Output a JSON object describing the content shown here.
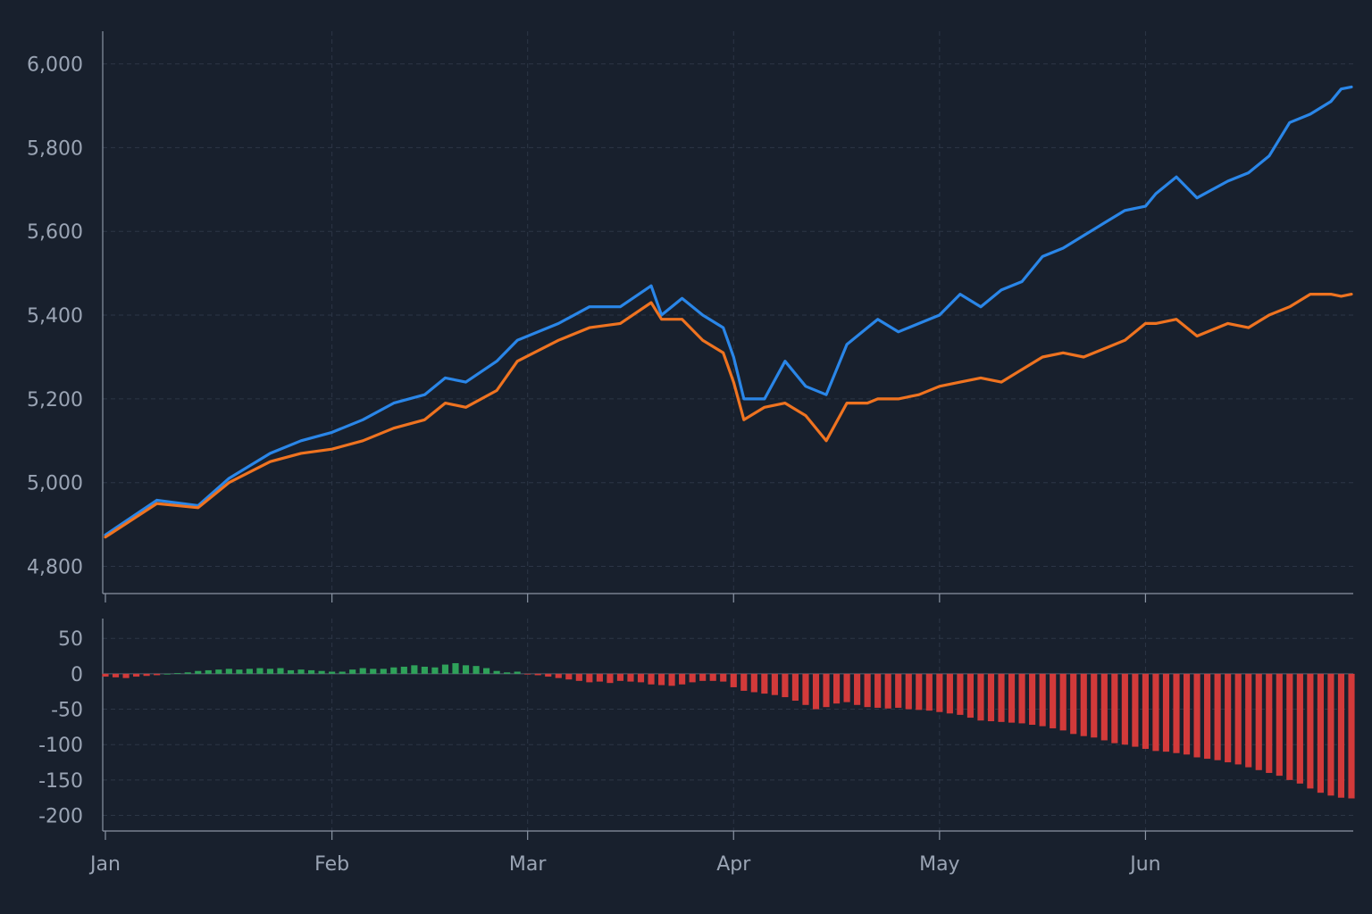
{
  "colors": {
    "background": "#18202d",
    "series_a": "#2a86e8",
    "series_b": "#ef7320",
    "diff_positive": "#2fa25a",
    "diff_negative": "#d23a3a"
  },
  "chart_data": [
    {
      "type": "line",
      "panel": "top",
      "title": "",
      "xlabel": "",
      "ylabel": "",
      "x_tick_labels": [
        "Jan",
        "Feb",
        "Mar",
        "Apr",
        "May",
        "Jun"
      ],
      "y_ticks": [
        4800,
        5000,
        5200,
        5400,
        5600,
        5800,
        6000
      ],
      "y_tick_labels": [
        "4,800",
        "5,000",
        "5,200",
        "5,400",
        "5,600",
        "5,800",
        "6,000"
      ],
      "ylim": [
        4735,
        6078
      ],
      "x_index_range": [
        0,
        121
      ],
      "x_tick_index": [
        0,
        22,
        41,
        61,
        81,
        101
      ],
      "grid": true,
      "series": [
        {
          "color_key": "series_a",
          "x_index": [
            0,
            5,
            9,
            12,
            16,
            19,
            22,
            25,
            28,
            31,
            33,
            35,
            38,
            40,
            44,
            47,
            50,
            53,
            54,
            56,
            58,
            60,
            61,
            62,
            64,
            66,
            68,
            70,
            72,
            74,
            75,
            77,
            79,
            81,
            83,
            85,
            87,
            89,
            91,
            93,
            95,
            97,
            99,
            101,
            102,
            104,
            106,
            109,
            111,
            113,
            115,
            117,
            119,
            120,
            121
          ],
          "values": [
            4875,
            4958,
            4945,
            5010,
            5070,
            5100,
            5120,
            5150,
            5190,
            5210,
            5250,
            5240,
            5290,
            5340,
            5380,
            5420,
            5420,
            5470,
            5400,
            5440,
            5400,
            5370,
            5300,
            5200,
            5200,
            5290,
            5230,
            5210,
            5330,
            5370,
            5390,
            5360,
            5380,
            5400,
            5450,
            5420,
            5460,
            5480,
            5540,
            5560,
            5590,
            5620,
            5650,
            5660,
            5690,
            5730,
            5680,
            5720,
            5740,
            5780,
            5860,
            5880,
            5910,
            5940,
            5945
          ]
        },
        {
          "color_key": "series_b",
          "x_index": [
            0,
            5,
            9,
            12,
            16,
            19,
            22,
            25,
            28,
            31,
            33,
            35,
            38,
            40,
            44,
            47,
            50,
            53,
            54,
            56,
            58,
            60,
            61,
            62,
            64,
            66,
            68,
            70,
            72,
            74,
            75,
            77,
            79,
            81,
            83,
            85,
            87,
            89,
            91,
            93,
            95,
            97,
            99,
            101,
            102,
            104,
            106,
            109,
            111,
            113,
            115,
            117,
            119,
            120,
            121
          ],
          "values": [
            4870,
            4950,
            4940,
            5000,
            5050,
            5070,
            5080,
            5100,
            5130,
            5150,
            5190,
            5180,
            5220,
            5290,
            5340,
            5370,
            5380,
            5430,
            5390,
            5390,
            5340,
            5310,
            5240,
            5150,
            5180,
            5190,
            5160,
            5100,
            5190,
            5190,
            5200,
            5200,
            5210,
            5230,
            5240,
            5250,
            5240,
            5270,
            5300,
            5310,
            5300,
            5320,
            5340,
            5380,
            5380,
            5390,
            5350,
            5380,
            5370,
            5400,
            5420,
            5450,
            5450,
            5445,
            5450
          ]
        }
      ]
    },
    {
      "type": "bar",
      "panel": "bottom",
      "title": "",
      "xlabel": "",
      "ylabel": "",
      "y_ticks": [
        50,
        0,
        -50,
        -100,
        -150,
        -200
      ],
      "y_tick_labels": [
        "50",
        "0",
        "-50",
        "-100",
        "-150",
        "-200"
      ],
      "ylim": [
        -222,
        78
      ],
      "x_index_range": [
        0,
        121
      ],
      "values": [
        -4,
        -5,
        -6,
        -4,
        -3,
        -2,
        0,
        1,
        2,
        4,
        5,
        6,
        7,
        6,
        7,
        8,
        7,
        8,
        5,
        6,
        5,
        4,
        3,
        3,
        6,
        8,
        7,
        7,
        9,
        10,
        12,
        10,
        9,
        13,
        15,
        12,
        11,
        8,
        4,
        2,
        3,
        -1,
        -2,
        -4,
        -6,
        -8,
        -10,
        -12,
        -11,
        -13,
        -10,
        -11,
        -12,
        -15,
        -16,
        -17,
        -15,
        -12,
        -10,
        -10,
        -11,
        -19,
        -24,
        -26,
        -28,
        -30,
        -33,
        -38,
        -44,
        -50,
        -47,
        -42,
        -40,
        -44,
        -47,
        -48,
        -49,
        -48,
        -50,
        -51,
        -52,
        -54,
        -56,
        -58,
        -62,
        -66,
        -67,
        -68,
        -69,
        -70,
        -72,
        -74,
        -77,
        -80,
        -85,
        -88,
        -90,
        -94,
        -98,
        -100,
        -103,
        -106,
        -109,
        -110,
        -112,
        -114,
        -118,
        -120,
        -122,
        -125,
        -128,
        -132,
        -136,
        -140,
        -144,
        -150,
        -155,
        -162,
        -168,
        -172,
        -175,
        -176
      ]
    }
  ]
}
